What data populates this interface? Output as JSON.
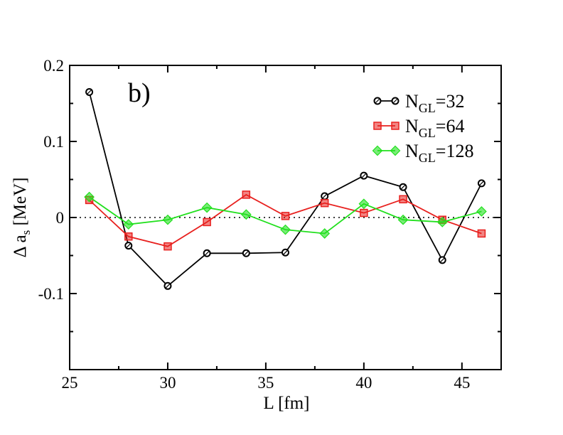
{
  "chart_data": {
    "type": "line",
    "panel_label": "b)",
    "xlabel": "L [fm]",
    "ylabel": "Δ a",
    "ylabel_sub": "s",
    "ylabel_unit": " [MeV]",
    "xlim": [
      25,
      47
    ],
    "ylim": [
      -0.2,
      0.2
    ],
    "xticks": [
      25,
      30,
      35,
      40,
      45
    ],
    "xtick_labels": [
      "25",
      "30",
      "35",
      "40",
      "45"
    ],
    "yticks": [
      -0.1,
      0,
      0.1,
      0.2
    ],
    "ytick_labels": [
      "-0.1",
      "0",
      "0.1",
      "0.2"
    ],
    "reference_line_y": 0,
    "x": [
      26,
      28,
      30,
      32,
      34,
      36,
      38,
      40,
      42,
      44,
      46
    ],
    "series": [
      {
        "name": "N_GL=32",
        "label_main": "N",
        "label_sub": "GL",
        "label_tail": "=32",
        "color": "#000000",
        "marker": "circle",
        "values": [
          0.165,
          -0.037,
          -0.09,
          -0.047,
          -0.047,
          -0.046,
          0.028,
          0.055,
          0.04,
          -0.056,
          0.045
        ]
      },
      {
        "name": "N_GL=64",
        "label_main": "N",
        "label_sub": "GL",
        "label_tail": "=64",
        "color": "#e8201e",
        "marker": "square",
        "values": [
          0.023,
          -0.025,
          -0.038,
          -0.006,
          0.03,
          0.002,
          0.019,
          0.006,
          0.024,
          -0.003,
          -0.021
        ]
      },
      {
        "name": "N_GL=128",
        "label_main": "N",
        "label_sub": "GL",
        "label_tail": "=128",
        "color": "#22e01e",
        "marker": "diamond",
        "values": [
          0.027,
          -0.009,
          -0.003,
          0.013,
          0.004,
          -0.016,
          -0.021,
          0.018,
          -0.003,
          -0.006,
          0.008
        ]
      }
    ]
  }
}
